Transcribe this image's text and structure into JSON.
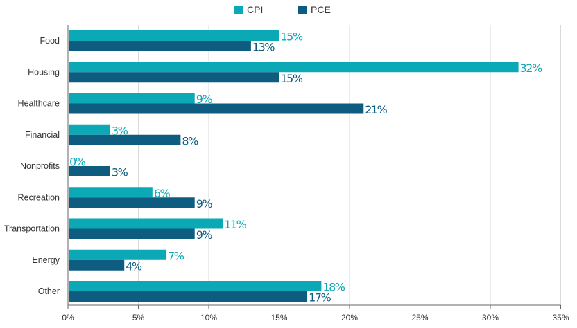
{
  "chart_data": {
    "type": "bar",
    "orientation": "horizontal",
    "title": "",
    "xlabel": "",
    "ylabel": "",
    "categories": [
      "Food",
      "Housing",
      "Healthcare",
      "Financial",
      "Nonprofits",
      "Recreation",
      "Transportation",
      "Energy",
      "Other"
    ],
    "series": [
      {
        "name": "CPI",
        "color": "#0aa9b5",
        "values": [
          15,
          32,
          9,
          3,
          0,
          6,
          11,
          7,
          18
        ]
      },
      {
        "name": "PCE",
        "color": "#0e5c80",
        "values": [
          13,
          15,
          21,
          8,
          3,
          9,
          9,
          4,
          17
        ]
      }
    ],
    "xlim": [
      0,
      35
    ],
    "xticks": [
      0,
      5,
      10,
      15,
      20,
      25,
      30,
      35
    ],
    "tick_suffix": "%",
    "value_suffix": "%",
    "grid": "vertical",
    "legend": "top-center"
  }
}
